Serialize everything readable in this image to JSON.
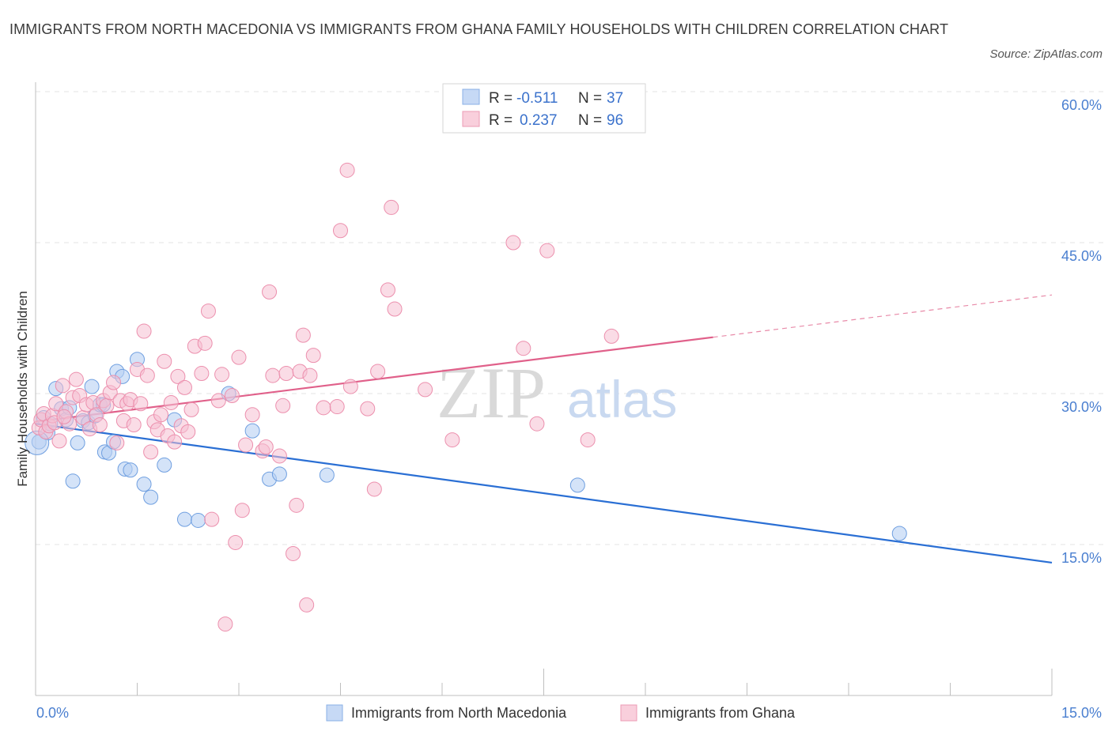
{
  "title": "IMMIGRANTS FROM NORTH MACEDONIA VS IMMIGRANTS FROM GHANA FAMILY HOUSEHOLDS WITH CHILDREN CORRELATION CHART",
  "source": "Source: ZipAtlas.com",
  "watermark": {
    "zip": "ZIP",
    "atlas": "atlas"
  },
  "legend": {
    "rows": [
      {
        "r_label": "R =",
        "r_value": "-0.511",
        "n_label": "N =",
        "n_value": "37"
      },
      {
        "r_label": "R =",
        "r_value": "0.237",
        "n_label": "N =",
        "n_value": "96"
      }
    ]
  },
  "chart_data": {
    "type": "scatter",
    "title": "IMMIGRANTS FROM NORTH MACEDONIA VS IMMIGRANTS FROM GHANA FAMILY HOUSEHOLDS WITH CHILDREN CORRELATION CHART",
    "xlabel": "",
    "ylabel": "Family Households with Children",
    "xlim": [
      0,
      15
    ],
    "ylim": [
      0,
      60
    ],
    "x_tick_labels": [
      "0.0%",
      "15.0%"
    ],
    "y_tick_labels": [
      "15.0%",
      "30.0%",
      "45.0%",
      "60.0%"
    ],
    "y_ticks": [
      15,
      30,
      45,
      60
    ],
    "colors": {
      "blue": "#6f9fe0",
      "blue_line": "#2a6fd4",
      "pink": "#f0a0b8",
      "pink_line": "#e0608a"
    },
    "series": [
      {
        "name": "Immigrants from North Macedonia",
        "r": -0.511,
        "n": 37,
        "trend": {
          "x0": 0.0,
          "y0": 27.0,
          "x1": 15.0,
          "y1": 13.2
        },
        "points": [
          {
            "x": 0.05,
            "y": 25.2
          },
          {
            "x": 0.12,
            "y": 27.6
          },
          {
            "x": 0.18,
            "y": 26.1
          },
          {
            "x": 0.22,
            "y": 27.0
          },
          {
            "x": 0.3,
            "y": 30.5
          },
          {
            "x": 0.38,
            "y": 28.5
          },
          {
            "x": 0.45,
            "y": 27.4
          },
          {
            "x": 0.5,
            "y": 28.6
          },
          {
            "x": 0.55,
            "y": 21.3
          },
          {
            "x": 0.62,
            "y": 25.1
          },
          {
            "x": 0.7,
            "y": 27.3
          },
          {
            "x": 0.78,
            "y": 27.1
          },
          {
            "x": 0.83,
            "y": 30.7
          },
          {
            "x": 0.88,
            "y": 27.8
          },
          {
            "x": 0.95,
            "y": 28.9
          },
          {
            "x": 1.02,
            "y": 24.2
          },
          {
            "x": 1.08,
            "y": 24.1
          },
          {
            "x": 1.15,
            "y": 25.2
          },
          {
            "x": 1.2,
            "y": 32.2
          },
          {
            "x": 1.28,
            "y": 31.7
          },
          {
            "x": 1.32,
            "y": 22.5
          },
          {
            "x": 1.4,
            "y": 22.4
          },
          {
            "x": 1.5,
            "y": 33.4
          },
          {
            "x": 1.6,
            "y": 21.0
          },
          {
            "x": 1.7,
            "y": 19.7
          },
          {
            "x": 1.9,
            "y": 22.9
          },
          {
            "x": 2.05,
            "y": 27.4
          },
          {
            "x": 2.2,
            "y": 17.5
          },
          {
            "x": 2.4,
            "y": 17.4
          },
          {
            "x": 2.85,
            "y": 30.0
          },
          {
            "x": 3.2,
            "y": 26.3
          },
          {
            "x": 3.45,
            "y": 21.5
          },
          {
            "x": 3.6,
            "y": 22.0
          },
          {
            "x": 4.3,
            "y": 21.9
          },
          {
            "x": 8.0,
            "y": 20.9
          },
          {
            "x": 12.75,
            "y": 16.1
          },
          {
            "x": 1.0,
            "y": 28.9
          }
        ]
      },
      {
        "name": "Immigrants from Ghana",
        "r": 0.237,
        "n": 96,
        "trend": {
          "x0": 0.0,
          "y0": 27.2,
          "x1": 10.0,
          "y1": 35.6
        },
        "trend_extension": {
          "x0": 10.0,
          "y0": 35.6,
          "x1": 15.0,
          "y1": 39.8
        },
        "points": [
          {
            "x": 0.05,
            "y": 26.6
          },
          {
            "x": 0.08,
            "y": 27.4
          },
          {
            "x": 0.12,
            "y": 28.0
          },
          {
            "x": 0.15,
            "y": 26.2
          },
          {
            "x": 0.2,
            "y": 26.8
          },
          {
            "x": 0.25,
            "y": 27.8
          },
          {
            "x": 0.3,
            "y": 29.0
          },
          {
            "x": 0.35,
            "y": 25.3
          },
          {
            "x": 0.4,
            "y": 30.8
          },
          {
            "x": 0.45,
            "y": 28.2
          },
          {
            "x": 0.5,
            "y": 27.0
          },
          {
            "x": 0.55,
            "y": 29.6
          },
          {
            "x": 0.6,
            "y": 31.4
          },
          {
            "x": 0.65,
            "y": 29.8
          },
          {
            "x": 0.7,
            "y": 27.6
          },
          {
            "x": 0.75,
            "y": 28.9
          },
          {
            "x": 0.8,
            "y": 26.5
          },
          {
            "x": 0.85,
            "y": 29.1
          },
          {
            "x": 0.9,
            "y": 27.9
          },
          {
            "x": 0.95,
            "y": 26.9
          },
          {
            "x": 1.0,
            "y": 29.3
          },
          {
            "x": 1.05,
            "y": 28.8
          },
          {
            "x": 1.1,
            "y": 30.1
          },
          {
            "x": 1.15,
            "y": 31.1
          },
          {
            "x": 1.2,
            "y": 25.1
          },
          {
            "x": 1.25,
            "y": 29.3
          },
          {
            "x": 1.3,
            "y": 27.3
          },
          {
            "x": 1.35,
            "y": 29.0
          },
          {
            "x": 1.4,
            "y": 29.4
          },
          {
            "x": 1.45,
            "y": 26.9
          },
          {
            "x": 1.5,
            "y": 32.4
          },
          {
            "x": 1.55,
            "y": 29.0
          },
          {
            "x": 1.6,
            "y": 36.2
          },
          {
            "x": 1.65,
            "y": 31.8
          },
          {
            "x": 1.7,
            "y": 24.2
          },
          {
            "x": 1.75,
            "y": 27.2
          },
          {
            "x": 1.8,
            "y": 26.4
          },
          {
            "x": 1.85,
            "y": 27.9
          },
          {
            "x": 1.9,
            "y": 33.2
          },
          {
            "x": 1.95,
            "y": 25.8
          },
          {
            "x": 2.0,
            "y": 29.1
          },
          {
            "x": 2.05,
            "y": 25.2
          },
          {
            "x": 2.1,
            "y": 31.7
          },
          {
            "x": 2.15,
            "y": 26.8
          },
          {
            "x": 2.2,
            "y": 30.6
          },
          {
            "x": 2.25,
            "y": 26.2
          },
          {
            "x": 2.3,
            "y": 28.4
          },
          {
            "x": 2.35,
            "y": 34.7
          },
          {
            "x": 2.45,
            "y": 32.0
          },
          {
            "x": 2.5,
            "y": 35.0
          },
          {
            "x": 2.55,
            "y": 38.2
          },
          {
            "x": 2.6,
            "y": 17.5
          },
          {
            "x": 2.7,
            "y": 29.3
          },
          {
            "x": 2.75,
            "y": 31.9
          },
          {
            "x": 2.8,
            "y": 7.1
          },
          {
            "x": 2.9,
            "y": 29.8
          },
          {
            "x": 2.95,
            "y": 15.2
          },
          {
            "x": 3.0,
            "y": 33.6
          },
          {
            "x": 3.05,
            "y": 18.4
          },
          {
            "x": 3.1,
            "y": 24.9
          },
          {
            "x": 3.2,
            "y": 27.9
          },
          {
            "x": 3.35,
            "y": 24.3
          },
          {
            "x": 3.4,
            "y": 24.7
          },
          {
            "x": 3.45,
            "y": 40.1
          },
          {
            "x": 3.5,
            "y": 31.8
          },
          {
            "x": 3.6,
            "y": 23.8
          },
          {
            "x": 3.65,
            "y": 28.8
          },
          {
            "x": 3.7,
            "y": 32.0
          },
          {
            "x": 3.8,
            "y": 14.1
          },
          {
            "x": 3.85,
            "y": 18.9
          },
          {
            "x": 3.9,
            "y": 32.2
          },
          {
            "x": 3.95,
            "y": 35.8
          },
          {
            "x": 4.0,
            "y": 9.0
          },
          {
            "x": 4.05,
            "y": 31.8
          },
          {
            "x": 4.1,
            "y": 33.8
          },
          {
            "x": 4.25,
            "y": 28.6
          },
          {
            "x": 4.45,
            "y": 28.7
          },
          {
            "x": 4.5,
            "y": 46.2
          },
          {
            "x": 4.6,
            "y": 52.2
          },
          {
            "x": 4.65,
            "y": 30.7
          },
          {
            "x": 4.9,
            "y": 28.5
          },
          {
            "x": 5.0,
            "y": 20.5
          },
          {
            "x": 5.05,
            "y": 32.2
          },
          {
            "x": 5.2,
            "y": 40.3
          },
          {
            "x": 5.25,
            "y": 48.5
          },
          {
            "x": 5.3,
            "y": 38.4
          },
          {
            "x": 5.75,
            "y": 30.4
          },
          {
            "x": 6.15,
            "y": 25.4
          },
          {
            "x": 7.05,
            "y": 45.0
          },
          {
            "x": 7.2,
            "y": 34.5
          },
          {
            "x": 7.4,
            "y": 27.0
          },
          {
            "x": 7.55,
            "y": 44.2
          },
          {
            "x": 8.15,
            "y": 25.4
          },
          {
            "x": 8.5,
            "y": 35.7
          },
          {
            "x": 0.28,
            "y": 27.1
          },
          {
            "x": 0.42,
            "y": 27.7
          }
        ]
      }
    ]
  },
  "bottom_legend": {
    "items": [
      {
        "label": "Immigrants from North Macedonia"
      },
      {
        "label": "Immigrants from Ghana"
      }
    ]
  }
}
